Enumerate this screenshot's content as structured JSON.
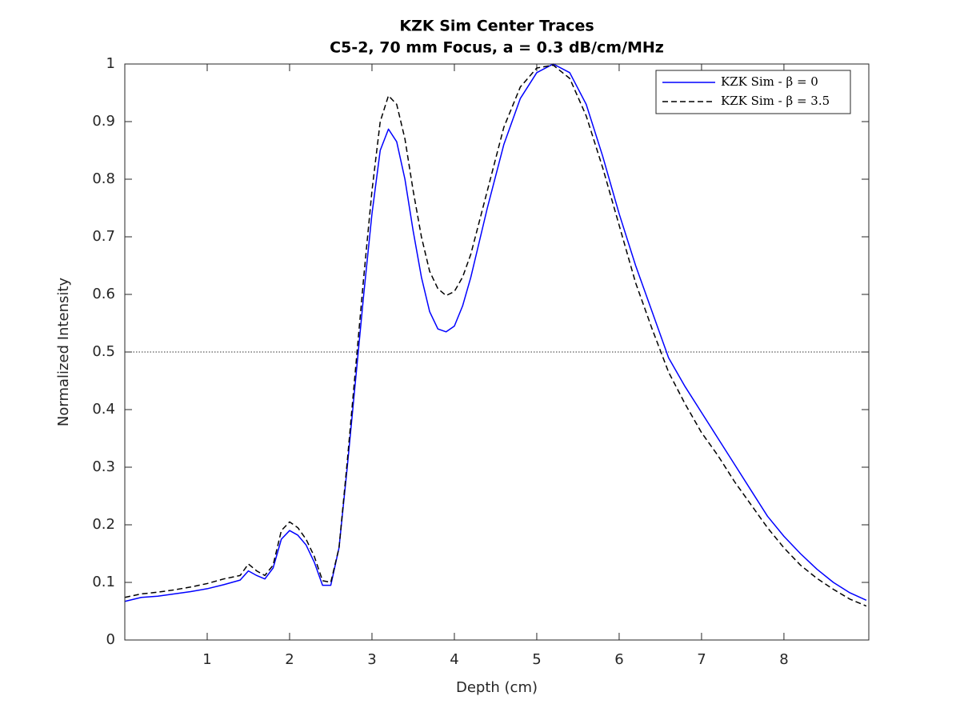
{
  "chart_data": {
    "type": "line",
    "title": "KZK Sim Center Traces",
    "subtitle": "C5-2, 70 mm Focus, a = 0.3 dB/cm/MHz",
    "x_label": "Depth (cm)",
    "y_label": "Normalized Intensity",
    "x": [
      0,
      0.2,
      0.4,
      0.6,
      0.8,
      1.0,
      1.2,
      1.4,
      1.5,
      1.6,
      1.7,
      1.8,
      1.9,
      2.0,
      2.1,
      2.2,
      2.3,
      2.4,
      2.5,
      2.6,
      2.7,
      2.8,
      2.9,
      3.0,
      3.1,
      3.2,
      3.3,
      3.4,
      3.5,
      3.6,
      3.7,
      3.8,
      3.9,
      4.0,
      4.1,
      4.2,
      4.4,
      4.6,
      4.8,
      5.0,
      5.2,
      5.4,
      5.6,
      5.8,
      6.0,
      6.2,
      6.4,
      6.6,
      6.8,
      7.0,
      7.2,
      7.4,
      7.6,
      7.8,
      8.0,
      8.2,
      8.4,
      8.6,
      8.8,
      9.0
    ],
    "series": [
      {
        "name": "KZK Sim - β = 0",
        "color": "#0000ff",
        "dash": "solid",
        "values": [
          0.067,
          0.074,
          0.076,
          0.08,
          0.084,
          0.089,
          0.096,
          0.104,
          0.12,
          0.112,
          0.106,
          0.125,
          0.175,
          0.19,
          0.182,
          0.165,
          0.135,
          0.095,
          0.095,
          0.16,
          0.3,
          0.45,
          0.6,
          0.74,
          0.85,
          0.887,
          0.865,
          0.8,
          0.71,
          0.63,
          0.57,
          0.54,
          0.535,
          0.545,
          0.58,
          0.63,
          0.75,
          0.86,
          0.94,
          0.985,
          1.0,
          0.985,
          0.93,
          0.84,
          0.74,
          0.65,
          0.57,
          0.49,
          0.44,
          0.395,
          0.35,
          0.305,
          0.26,
          0.215,
          0.18,
          0.15,
          0.123,
          0.1,
          0.082,
          0.069
        ]
      },
      {
        "name": "KZK Sim - β = 3.5",
        "color": "#000000",
        "dash": "dashed",
        "values": [
          0.074,
          0.08,
          0.083,
          0.087,
          0.092,
          0.098,
          0.106,
          0.112,
          0.132,
          0.12,
          0.112,
          0.13,
          0.19,
          0.205,
          0.195,
          0.175,
          0.145,
          0.103,
          0.1,
          0.16,
          0.31,
          0.47,
          0.63,
          0.78,
          0.9,
          0.945,
          0.93,
          0.87,
          0.78,
          0.7,
          0.64,
          0.61,
          0.598,
          0.605,
          0.63,
          0.67,
          0.78,
          0.89,
          0.96,
          0.993,
          0.998,
          0.975,
          0.91,
          0.82,
          0.72,
          0.62,
          0.54,
          0.465,
          0.41,
          0.36,
          0.32,
          0.275,
          0.235,
          0.195,
          0.16,
          0.13,
          0.107,
          0.088,
          0.071,
          0.059
        ]
      }
    ],
    "hline": 0.5,
    "xlim": [
      0,
      9.03
    ],
    "xticks": [
      1,
      2,
      3,
      4,
      5,
      6,
      7,
      8
    ],
    "ylim": [
      0,
      1
    ],
    "yticks": [
      0,
      0.1,
      0.2,
      0.3,
      0.4,
      0.5,
      0.6,
      0.7,
      0.8,
      0.9,
      1
    ],
    "legend": "northeast",
    "grid": false
  }
}
